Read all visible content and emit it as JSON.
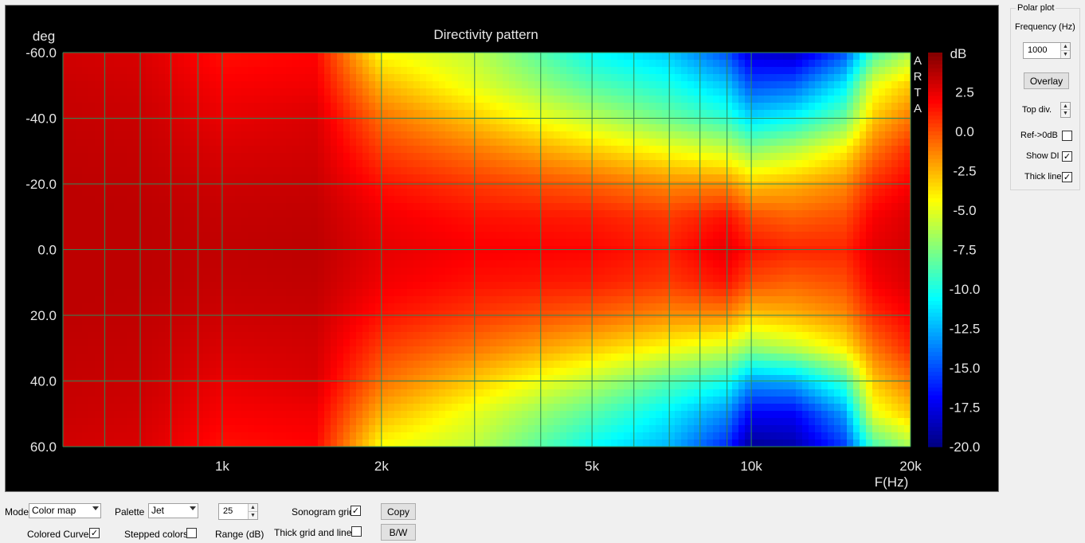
{
  "chart_data": {
    "type": "heatmap",
    "title": "Directivity pattern",
    "ylabel": "deg",
    "xlabel": "F(Hz)",
    "watermark": "ARTA",
    "x_scale": "log",
    "xlim": [
      500,
      20000
    ],
    "ylim": [
      -60,
      60
    ],
    "x_ticks": [
      {
        "value": 1000,
        "label": "1k"
      },
      {
        "value": 2000,
        "label": "2k"
      },
      {
        "value": 5000,
        "label": "5k"
      },
      {
        "value": 10000,
        "label": "10k"
      },
      {
        "value": 20000,
        "label": "20k"
      }
    ],
    "y_ticks": [
      {
        "value": -60,
        "label": "-60.0"
      },
      {
        "value": -40,
        "label": "-40.0"
      },
      {
        "value": -20,
        "label": "-20.0"
      },
      {
        "value": 0,
        "label": "0.0"
      },
      {
        "value": 20,
        "label": "20.0"
      },
      {
        "value": 40,
        "label": "40.0"
      },
      {
        "value": 60,
        "label": "60.0"
      }
    ],
    "colorbar": {
      "label": "dB",
      "palette": "jet",
      "range": [
        -20,
        5
      ],
      "ticks": [
        {
          "value": 2.5,
          "label": "2.5"
        },
        {
          "value": 0,
          "label": "0.0"
        },
        {
          "value": -2.5,
          "label": "-2.5"
        },
        {
          "value": -5,
          "label": "-5.0"
        },
        {
          "value": -7.5,
          "label": "-7.5"
        },
        {
          "value": -10,
          "label": "-10.0"
        },
        {
          "value": -12.5,
          "label": "-12.5"
        },
        {
          "value": -15,
          "label": "-15.0"
        },
        {
          "value": -17.5,
          "label": "-17.5"
        },
        {
          "value": -20,
          "label": "-20.0"
        }
      ]
    },
    "grid": true,
    "grid_color": "#2e8b57",
    "angles": [
      -60,
      -50,
      -40,
      -30,
      -20,
      -10,
      0,
      10,
      20,
      30,
      40,
      50,
      60
    ],
    "frequencies": [
      500,
      700,
      1000,
      1500,
      2000,
      3000,
      5000,
      7000,
      9000,
      10000,
      12000,
      15000,
      17000,
      20000
    ],
    "values_db": [
      [
        3.0,
        2.8,
        1.5,
        1.8,
        -4.5,
        -6.0,
        -10.5,
        -12.0,
        -15.0,
        -18.0,
        -18.5,
        -15.0,
        -9.0,
        -6.5
      ],
      [
        3.2,
        3.0,
        2.0,
        2.2,
        -2.5,
        -5.0,
        -8.5,
        -10.0,
        -12.0,
        -15.0,
        -14.5,
        -11.0,
        -5.0,
        -3.0
      ],
      [
        3.3,
        3.2,
        2.4,
        2.8,
        -0.8,
        -3.0,
        -6.0,
        -8.0,
        -9.5,
        -11.5,
        -10.5,
        -8.0,
        -3.0,
        -1.0
      ],
      [
        3.4,
        3.3,
        2.8,
        3.0,
        0.4,
        -1.0,
        -3.0,
        -4.5,
        -5.5,
        -7.0,
        -6.0,
        -4.0,
        -1.0,
        1.0
      ],
      [
        3.5,
        3.4,
        3.1,
        3.2,
        1.5,
        0.5,
        -0.5,
        -1.5,
        -1.5,
        -3.0,
        -2.5,
        -1.5,
        0.8,
        2.0
      ],
      [
        3.5,
        3.5,
        3.3,
        3.4,
        2.2,
        1.5,
        1.2,
        0.5,
        1.5,
        0.0,
        -0.5,
        0.0,
        2.0,
        2.8
      ],
      [
        3.5,
        3.5,
        3.4,
        3.5,
        2.5,
        2.0,
        1.8,
        1.2,
        2.5,
        1.5,
        1.0,
        1.0,
        2.5,
        3.0
      ],
      [
        3.5,
        3.5,
        3.3,
        3.4,
        2.2,
        1.5,
        1.2,
        0.5,
        1.5,
        0.0,
        -0.5,
        0.0,
        2.0,
        2.8
      ],
      [
        3.5,
        3.4,
        3.1,
        3.2,
        1.5,
        0.5,
        -0.5,
        -1.5,
        -1.5,
        -3.0,
        -2.5,
        -1.5,
        0.8,
        2.0
      ],
      [
        3.4,
        3.3,
        2.8,
        3.0,
        0.4,
        -1.0,
        -3.0,
        -4.5,
        -5.5,
        -7.0,
        -6.0,
        -4.0,
        -1.0,
        1.0
      ],
      [
        3.3,
        3.2,
        2.4,
        2.8,
        -0.8,
        -3.0,
        -6.0,
        -8.5,
        -10.0,
        -13.0,
        -12.5,
        -9.0,
        -3.0,
        -1.0
      ],
      [
        3.2,
        3.0,
        2.0,
        2.2,
        -2.5,
        -5.0,
        -8.5,
        -11.0,
        -13.5,
        -17.0,
        -17.0,
        -13.0,
        -5.0,
        -3.0
      ],
      [
        3.0,
        2.8,
        1.5,
        1.8,
        -4.5,
        -6.0,
        -10.5,
        -12.5,
        -16.0,
        -19.5,
        -19.0,
        -15.5,
        -9.0,
        -6.5
      ]
    ]
  },
  "controls": {
    "mode_label": "Mode",
    "mode_value": "Color map",
    "palette_label": "Palette",
    "palette_value": "Jet",
    "range_value": "25",
    "range_label": "Range (dB)",
    "sonogram_grid_label": "Sonogram grid",
    "sonogram_grid_checked": true,
    "copy_label": "Copy",
    "colored_curves_label": "Colored Curves",
    "colored_curves_checked": true,
    "stepped_colors_label": "Stepped colors",
    "stepped_colors_checked": false,
    "thick_grid_label": "Thick grid and  lines",
    "thick_grid_checked": false,
    "bw_label": "B/W"
  },
  "polar": {
    "group_title": "Polar plot",
    "frequency_label": "Frequency (Hz)",
    "frequency_value": "1000",
    "overlay_label": "Overlay",
    "top_div_label": "Top div.",
    "ref_label": "Ref->0dB",
    "ref_checked": false,
    "show_di_label": "Show DI",
    "show_di_checked": true,
    "thick_line_label": "Thick line",
    "thick_line_checked": true
  }
}
